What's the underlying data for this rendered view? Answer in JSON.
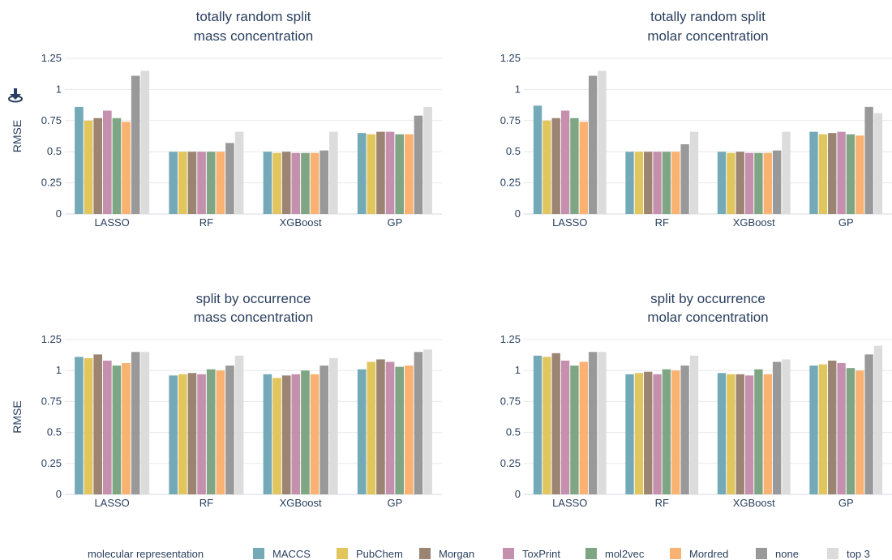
{
  "legend": {
    "title": "molecular representation",
    "position": "bottom"
  },
  "icons": {
    "download": "download-icon"
  },
  "colors": {
    "MACCS": "#74a9b8",
    "PubChem": "#e1c65d",
    "Morgan": "#9c8472",
    "ToxPrint": "#c58fae",
    "mol2vec": "#7fa684",
    "Mordred": "#f9b271",
    "none": "#999999",
    "top 3": "#dcdcdc"
  },
  "chart_data": [
    {
      "type": "bar",
      "title": [
        "totally random split",
        "mass concentration"
      ],
      "xlabel": "",
      "ylabel": "RMSE",
      "ylim": [
        0,
        1.25
      ],
      "yticks": [
        "0",
        "0.25",
        "0.5",
        "0.75",
        "1",
        "1.25"
      ],
      "categories": [
        "LASSO",
        "RF",
        "XGBoost",
        "GP"
      ],
      "series": [
        {
          "name": "MACCS",
          "values": [
            0.86,
            0.5,
            0.5,
            0.65
          ]
        },
        {
          "name": "PubChem",
          "values": [
            0.75,
            0.5,
            0.49,
            0.64
          ]
        },
        {
          "name": "Morgan",
          "values": [
            0.77,
            0.5,
            0.5,
            0.66
          ]
        },
        {
          "name": "ToxPrint",
          "values": [
            0.83,
            0.5,
            0.49,
            0.66
          ]
        },
        {
          "name": "mol2vec",
          "values": [
            0.77,
            0.5,
            0.49,
            0.64
          ]
        },
        {
          "name": "Mordred",
          "values": [
            0.74,
            0.5,
            0.49,
            0.64
          ]
        },
        {
          "name": "none",
          "values": [
            1.11,
            0.57,
            0.51,
            0.79
          ]
        },
        {
          "name": "top 3",
          "values": [
            1.15,
            0.66,
            0.66,
            0.86
          ]
        }
      ]
    },
    {
      "type": "bar",
      "title": [
        "totally random split",
        "molar concentration"
      ],
      "xlabel": "",
      "ylabel": "",
      "ylim": [
        0,
        1.25
      ],
      "yticks": [
        "0",
        "0.25",
        "0.5",
        "0.75",
        "1",
        "1.25"
      ],
      "categories": [
        "LASSO",
        "RF",
        "XGBoost",
        "GP"
      ],
      "series": [
        {
          "name": "MACCS",
          "values": [
            0.87,
            0.5,
            0.5,
            0.66
          ]
        },
        {
          "name": "PubChem",
          "values": [
            0.75,
            0.5,
            0.49,
            0.64
          ]
        },
        {
          "name": "Morgan",
          "values": [
            0.77,
            0.5,
            0.5,
            0.65
          ]
        },
        {
          "name": "ToxPrint",
          "values": [
            0.83,
            0.5,
            0.49,
            0.66
          ]
        },
        {
          "name": "mol2vec",
          "values": [
            0.77,
            0.5,
            0.49,
            0.64
          ]
        },
        {
          "name": "Mordred",
          "values": [
            0.74,
            0.5,
            0.49,
            0.63
          ]
        },
        {
          "name": "none",
          "values": [
            1.11,
            0.56,
            0.51,
            0.86
          ]
        },
        {
          "name": "top 3",
          "values": [
            1.15,
            0.66,
            0.66,
            0.81
          ]
        }
      ]
    },
    {
      "type": "bar",
      "title": [
        "split by occurrence",
        "mass concentration"
      ],
      "xlabel": "",
      "ylabel": "RMSE",
      "ylim": [
        0,
        1.25
      ],
      "yticks": [
        "0",
        "0.25",
        "0.5",
        "0.75",
        "1",
        "1.25"
      ],
      "categories": [
        "LASSO",
        "RF",
        "XGBoost",
        "GP"
      ],
      "series": [
        {
          "name": "MACCS",
          "values": [
            1.11,
            0.96,
            0.97,
            1.01
          ]
        },
        {
          "name": "PubChem",
          "values": [
            1.1,
            0.97,
            0.94,
            1.07
          ]
        },
        {
          "name": "Morgan",
          "values": [
            1.13,
            0.98,
            0.96,
            1.09
          ]
        },
        {
          "name": "ToxPrint",
          "values": [
            1.08,
            0.97,
            0.97,
            1.07
          ]
        },
        {
          "name": "mol2vec",
          "values": [
            1.04,
            1.01,
            1.0,
            1.03
          ]
        },
        {
          "name": "Mordred",
          "values": [
            1.06,
            1.0,
            0.97,
            1.04
          ]
        },
        {
          "name": "none",
          "values": [
            1.15,
            1.04,
            1.04,
            1.15
          ]
        },
        {
          "name": "top 3",
          "values": [
            1.15,
            1.12,
            1.1,
            1.17
          ]
        }
      ]
    },
    {
      "type": "bar",
      "title": [
        "split by occurrence",
        "molar concentration"
      ],
      "xlabel": "",
      "ylabel": "",
      "ylim": [
        0,
        1.25
      ],
      "yticks": [
        "0",
        "0.25",
        "0.5",
        "0.75",
        "1",
        "1.25"
      ],
      "categories": [
        "LASSO",
        "RF",
        "XGBoost",
        "GP"
      ],
      "series": [
        {
          "name": "MACCS",
          "values": [
            1.12,
            0.97,
            0.98,
            1.04
          ]
        },
        {
          "name": "PubChem",
          "values": [
            1.11,
            0.98,
            0.97,
            1.05
          ]
        },
        {
          "name": "Morgan",
          "values": [
            1.14,
            0.99,
            0.97,
            1.08
          ]
        },
        {
          "name": "ToxPrint",
          "values": [
            1.08,
            0.97,
            0.96,
            1.06
          ]
        },
        {
          "name": "mol2vec",
          "values": [
            1.04,
            1.01,
            1.01,
            1.02
          ]
        },
        {
          "name": "Mordred",
          "values": [
            1.07,
            1.0,
            0.97,
            1.0
          ]
        },
        {
          "name": "none",
          "values": [
            1.15,
            1.04,
            1.07,
            1.13
          ]
        },
        {
          "name": "top 3",
          "values": [
            1.15,
            1.12,
            1.09,
            1.2
          ]
        }
      ]
    }
  ]
}
